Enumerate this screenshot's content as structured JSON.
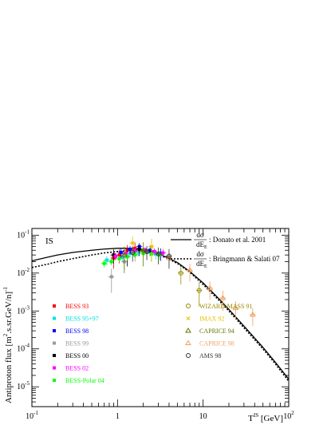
{
  "chart_data": {
    "type": "scatter",
    "title": "",
    "panel_label": "IS",
    "xlabel": "T^IS [GeV]",
    "xlabel_main": "T",
    "xlabel_sup": "IS",
    "xlabel_unit": " [GeV]",
    "ylabel": "Antiproton flux  [m^2.s.sr.GeV/n]^-1",
    "ylabel_main": "Antiproton flux  [m",
    "ylabel_sup1": "2",
    "ylabel_mid": ".s.sr.GeV/n]",
    "ylabel_sup2": "-1",
    "xscale": "log",
    "yscale": "log",
    "xlim": [
      0.1,
      100
    ],
    "ylim": [
      3e-06,
      0.15
    ],
    "x_ticks": [
      {
        "value": 0.1,
        "base": "10",
        "exp": "-1"
      },
      {
        "value": 1,
        "base": "1",
        "exp": ""
      },
      {
        "value": 10,
        "base": "10",
        "exp": ""
      },
      {
        "value": 100,
        "base": "10",
        "exp": "2"
      }
    ],
    "y_ticks": [
      {
        "value": 1e-05,
        "base": "10",
        "exp": "-5"
      },
      {
        "value": 0.0001,
        "base": "10",
        "exp": "-4"
      },
      {
        "value": 0.001,
        "base": "10",
        "exp": "-3"
      },
      {
        "value": 0.01,
        "base": "10",
        "exp": "-2"
      },
      {
        "value": 0.1,
        "base": "10",
        "exp": "-1"
      }
    ],
    "curves": [
      {
        "name": "Donato et al. 2001",
        "legend_frac": "dσ",
        "legend_sub": "E",
        "style": "solid",
        "x": [
          0.1,
          0.15,
          0.2,
          0.3,
          0.5,
          0.7,
          1.0,
          1.5,
          2.0,
          3.0,
          5.0,
          7.0,
          10,
          15,
          20,
          30,
          50,
          70,
          100
        ],
        "y": [
          0.021,
          0.026,
          0.03,
          0.035,
          0.04,
          0.043,
          0.045,
          0.045,
          0.042,
          0.033,
          0.019,
          0.011,
          0.0055,
          0.0022,
          0.0011,
          0.0004,
          0.00011,
          4.4e-05,
          1.6e-05
        ]
      },
      {
        "name": "Bringmann & Salati 07",
        "legend_frac": "dσ",
        "legend_sub": "E",
        "style": "dotted",
        "x": [
          0.1,
          0.15,
          0.2,
          0.3,
          0.5,
          0.7,
          1.0,
          1.5,
          2.0,
          3.0,
          5.0,
          7.0,
          10,
          15,
          20,
          30,
          50,
          70,
          100
        ],
        "y": [
          0.014,
          0.017,
          0.02,
          0.024,
          0.03,
          0.034,
          0.037,
          0.04,
          0.039,
          0.032,
          0.018,
          0.0105,
          0.005,
          0.002,
          0.001,
          0.00036,
          0.0001,
          4e-05,
          1.4e-05
        ]
      }
    ],
    "series": [
      {
        "name": "BESS 93",
        "color": "#ff0000",
        "marker": "square",
        "points": [
          [
            0.9,
            0.025,
            0.012
          ],
          [
            1.05,
            0.03,
            0.012
          ],
          [
            1.3,
            0.04,
            0.015
          ],
          [
            1.6,
            0.045,
            0.02
          ]
        ]
      },
      {
        "name": "BESS 95+97",
        "color": "#00e0e0",
        "marker": "square",
        "points": [
          [
            0.75,
            0.022,
            0.006
          ],
          [
            0.95,
            0.028,
            0.006
          ],
          [
            1.15,
            0.026,
            0.006
          ],
          [
            1.4,
            0.033,
            0.007
          ],
          [
            1.75,
            0.036,
            0.008
          ],
          [
            2.2,
            0.038,
            0.008
          ],
          [
            2.8,
            0.032,
            0.009
          ]
        ]
      },
      {
        "name": "BESS 98",
        "color": "#0000ff",
        "marker": "square",
        "points": [
          [
            1.1,
            0.035,
            0.01
          ],
          [
            1.4,
            0.042,
            0.01
          ],
          [
            1.8,
            0.05,
            0.012
          ],
          [
            2.4,
            0.04,
            0.012
          ],
          [
            3.2,
            0.033,
            0.012
          ]
        ]
      },
      {
        "name": "BESS 99",
        "color": "#999999",
        "marker": "square",
        "points": [
          [
            0.85,
            0.008,
            0.005
          ],
          [
            1.2,
            0.02,
            0.008
          ],
          [
            1.6,
            0.03,
            0.01
          ],
          [
            2.2,
            0.035,
            0.012
          ]
        ]
      },
      {
        "name": "BESS 00",
        "color": "#000000",
        "marker": "square",
        "points": [
          [
            0.9,
            0.03,
            0.012
          ],
          [
            1.3,
            0.027,
            0.012
          ],
          [
            1.8,
            0.042,
            0.014
          ],
          [
            2.5,
            0.035,
            0.015
          ]
        ]
      },
      {
        "name": "BESS 02",
        "color": "#ff00ff",
        "marker": "square",
        "points": [
          [
            0.95,
            0.028,
            0.006
          ],
          [
            1.25,
            0.033,
            0.006
          ],
          [
            1.6,
            0.039,
            0.007
          ],
          [
            2.1,
            0.041,
            0.007
          ],
          [
            2.7,
            0.037,
            0.008
          ],
          [
            3.4,
            0.034,
            0.009
          ]
        ]
      },
      {
        "name": "BESS-Polar 04",
        "color": "#00ff00",
        "marker": "square",
        "points": [
          [
            0.7,
            0.018,
            0.004
          ],
          [
            0.85,
            0.02,
            0.004
          ],
          [
            1.05,
            0.024,
            0.004
          ],
          [
            1.3,
            0.027,
            0.005
          ],
          [
            1.6,
            0.031,
            0.006
          ],
          [
            2.0,
            0.033,
            0.006
          ],
          [
            2.5,
            0.032,
            0.007
          ],
          [
            3.1,
            0.03,
            0.008
          ]
        ]
      },
      {
        "name": "WIZARD-MASS 91",
        "color": "#998800",
        "marker": "circle",
        "points": [
          [
            5.5,
            0.01,
            0.005
          ],
          [
            9.0,
            0.0035,
            0.0022
          ]
        ]
      },
      {
        "name": "IMAX 92",
        "color": "#e8c000",
        "marker": "cross",
        "points": [
          [
            1.5,
            0.062,
            0.03
          ],
          [
            2.5,
            0.05,
            0.03
          ]
        ]
      },
      {
        "name": "CAPRICE 94",
        "color": "#667700",
        "marker": "triangle",
        "points": [
          [
            1.2,
            0.03,
            0.02
          ],
          [
            2.0,
            0.04,
            0.025
          ]
        ]
      },
      {
        "name": "CAPRICE 98",
        "color": "#f0a060",
        "marker": "triangle",
        "points": [
          [
            4.0,
            0.025,
            0.01
          ],
          [
            7.0,
            0.012,
            0.006
          ],
          [
            12.0,
            0.004,
            0.002
          ],
          [
            17.0,
            0.0022,
            0.0012
          ],
          [
            24.0,
            0.0012,
            0.0006
          ],
          [
            38.0,
            0.0008,
            0.0004
          ]
        ]
      },
      {
        "name": "AMS 98",
        "color": "#333333",
        "marker": "circle",
        "points": [
          [
            1.5,
            0.035,
            0.015
          ],
          [
            2.2,
            0.037,
            0.015
          ],
          [
            3.0,
            0.032,
            0.015
          ],
          [
            4.0,
            0.028,
            0.015
          ]
        ]
      }
    ]
  }
}
